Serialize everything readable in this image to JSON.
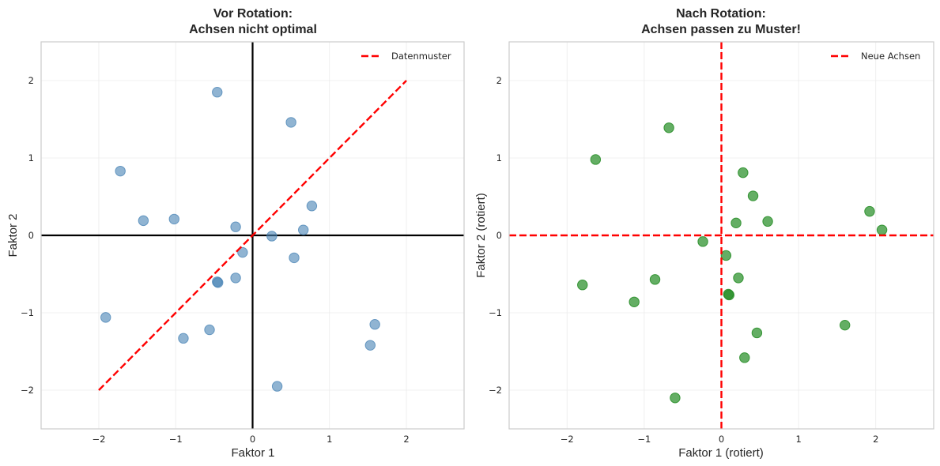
{
  "chart_data": [
    {
      "type": "scatter",
      "title": "Vor Rotation:\nAchsen nicht optimal",
      "title_lines": [
        "Vor Rotation:",
        "Achsen nicht optimal"
      ],
      "xlabel": "Faktor 1",
      "ylabel": "Faktor 2",
      "xlim": [
        -2.75,
        2.75
      ],
      "ylim": [
        -2.5,
        2.5
      ],
      "xticks": [
        -2,
        -1,
        0,
        1,
        2
      ],
      "yticks": [
        -2,
        -1,
        0,
        1,
        2
      ],
      "xtick_labels": [
        "−2",
        "−1",
        "0",
        "1",
        "2"
      ],
      "ytick_labels": [
        "−2",
        "−1",
        "0",
        "1",
        "2"
      ],
      "grid": true,
      "legend": {
        "position": "top-right",
        "entries": [
          {
            "label": "Datenmuster",
            "style": "dashed",
            "color": "#ff0000"
          }
        ]
      },
      "point_color": "#4682b4",
      "point_alpha": 0.6,
      "axes_lines": {
        "color": "#000000",
        "style": "solid",
        "x": 0,
        "y": 0
      },
      "pattern_line": {
        "label": "Datenmuster",
        "color": "#ff0000",
        "style": "dashed",
        "from": [
          -2,
          -2
        ],
        "to": [
          2,
          2
        ]
      },
      "points": [
        {
          "x": -0.46,
          "y": 1.85
        },
        {
          "x": -1.72,
          "y": 0.83
        },
        {
          "x": -1.42,
          "y": 0.19
        },
        {
          "x": -1.02,
          "y": 0.21
        },
        {
          "x": -0.22,
          "y": 0.11
        },
        {
          "x": 0.5,
          "y": 1.46
        },
        {
          "x": 0.77,
          "y": 0.38
        },
        {
          "x": 0.66,
          "y": 0.07
        },
        {
          "x": 0.25,
          "y": -0.01
        },
        {
          "x": -0.13,
          "y": -0.22
        },
        {
          "x": 0.54,
          "y": -0.29
        },
        {
          "x": -0.46,
          "y": -0.6
        },
        {
          "x": -0.45,
          "y": -0.61
        },
        {
          "x": -0.22,
          "y": -0.55
        },
        {
          "x": -1.91,
          "y": -1.06
        },
        {
          "x": -0.9,
          "y": -1.33
        },
        {
          "x": -0.56,
          "y": -1.22
        },
        {
          "x": 0.32,
          "y": -1.95
        },
        {
          "x": 1.59,
          "y": -1.15
        },
        {
          "x": 1.53,
          "y": -1.42
        }
      ]
    },
    {
      "type": "scatter",
      "title": "Nach Rotation:\nAchsen passen zu Muster!",
      "title_lines": [
        "Nach Rotation:",
        "Achsen passen zu Muster!"
      ],
      "xlabel": "Faktor 1 (rotiert)",
      "ylabel": "Faktor 2 (rotiert)",
      "xlim": [
        -2.75,
        2.75
      ],
      "ylim": [
        -2.5,
        2.5
      ],
      "xticks": [
        -2,
        -1,
        0,
        1,
        2
      ],
      "yticks": [
        -2,
        -1,
        0,
        1,
        2
      ],
      "xtick_labels": [
        "−2",
        "−1",
        "0",
        "1",
        "2"
      ],
      "ytick_labels": [
        "−2",
        "−1",
        "0",
        "1",
        "2"
      ],
      "grid": true,
      "legend": {
        "position": "top-right",
        "entries": [
          {
            "label": "Neue Achsen",
            "style": "dashed",
            "color": "#ff0000"
          }
        ]
      },
      "point_color": "#228b22",
      "point_alpha": 0.7,
      "axes_lines": {
        "color": "#ff0000",
        "style": "dashed",
        "x": 0,
        "y": 0,
        "label": "Neue Achsen"
      },
      "points": [
        {
          "x": -0.68,
          "y": 1.39
        },
        {
          "x": -1.63,
          "y": 0.98
        },
        {
          "x": -0.24,
          "y": -0.08
        },
        {
          "x": 0.06,
          "y": -0.26
        },
        {
          "x": 0.28,
          "y": 0.81
        },
        {
          "x": 0.41,
          "y": 0.51
        },
        {
          "x": 0.19,
          "y": 0.16
        },
        {
          "x": 0.6,
          "y": 0.18
        },
        {
          "x": 1.92,
          "y": 0.31
        },
        {
          "x": 2.08,
          "y": 0.07
        },
        {
          "x": 0.22,
          "y": -0.55
        },
        {
          "x": -1.8,
          "y": -0.64
        },
        {
          "x": -0.86,
          "y": -0.57
        },
        {
          "x": -1.13,
          "y": -0.86
        },
        {
          "x": 0.09,
          "y": -0.76
        },
        {
          "x": 0.1,
          "y": -0.77
        },
        {
          "x": 0.46,
          "y": -1.26
        },
        {
          "x": 0.3,
          "y": -1.58
        },
        {
          "x": 1.6,
          "y": -1.16
        },
        {
          "x": -0.6,
          "y": -2.1
        }
      ]
    }
  ]
}
